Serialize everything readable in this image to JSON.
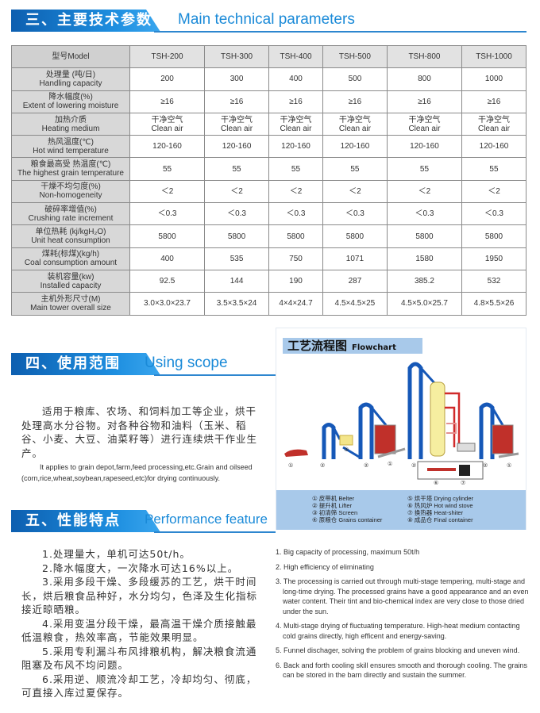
{
  "sections": {
    "params": {
      "cn": "三、主要技术参数",
      "en": "Main technical parameters"
    },
    "scope": {
      "cn": "四、使用范围",
      "en": "Using scope"
    },
    "perf": {
      "cn": "五、性能特点",
      "en": "Performance feature"
    }
  },
  "table": {
    "header": [
      "型号Model",
      "TSH-200",
      "TSH-300",
      "TSH-400",
      "TSH-500",
      "TSH-800",
      "TSH-1000"
    ],
    "rows": [
      {
        "cn": "处理量 (吨/日)",
        "en": "Handling capacity",
        "v": [
          "200",
          "300",
          "400",
          "500",
          "800",
          "1000"
        ]
      },
      {
        "cn": "降水幅度(%)",
        "en": "Extent of lowering moisture",
        "v": [
          "≥16",
          "≥16",
          "≥16",
          "≥16",
          "≥16",
          "≥16"
        ]
      },
      {
        "cn": "加热介质",
        "en": "Heating medium",
        "v": [
          "干净空气\nClean air",
          "干净空气\nClean air",
          "干净空气\nClean air",
          "干净空气\nClean air",
          "干净空气\nClean air",
          "干净空气\nClean air"
        ]
      },
      {
        "cn": "热风温度(℃)",
        "en": "Hot wind temperature",
        "v": [
          "120-160",
          "120-160",
          "120-160",
          "120-160",
          "120-160",
          "120-160"
        ]
      },
      {
        "cn": "粮食最高受 热温度(℃)",
        "en": "The highest grain temperature",
        "v": [
          "55",
          "55",
          "55",
          "55",
          "55",
          "55"
        ]
      },
      {
        "cn": "干燥不均匀度(%)",
        "en": "Non-homogeneity",
        "v": [
          "＜2",
          "＜2",
          "＜2",
          "＜2",
          "＜2",
          "＜2"
        ]
      },
      {
        "cn": "破碎率增值(%)",
        "en": "Crushing rate increment",
        "v": [
          "＜0.3",
          "＜0.3",
          "＜0.3",
          "＜0.3",
          "＜0.3",
          "＜0.3"
        ]
      },
      {
        "cn": "单位热耗 (kj/kgH₂O)",
        "en": "Unit heat consumption",
        "v": [
          "5800",
          "5800",
          "5800",
          "5800",
          "5800",
          "5800"
        ]
      },
      {
        "cn": "煤耗(标煤)(kg/h)",
        "en": "Coal consumption amount",
        "v": [
          "400",
          "535",
          "750",
          "1071",
          "1580",
          "1950"
        ]
      },
      {
        "cn": "装机容量(kw)",
        "en": "Installed capacity",
        "v": [
          "92.5",
          "144",
          "190",
          "287",
          "385.2",
          "532"
        ]
      },
      {
        "cn": "主机外形尺寸(M)",
        "en": "Main tower overall size",
        "v": [
          "3.0×3.0×23.7",
          "3.5×3.5×24",
          "4×4×24.7",
          "4.5×4.5×25",
          "4.5×5.0×25.7",
          "4.8×5.5×26"
        ]
      }
    ]
  },
  "scope": {
    "cn": "适用于粮库、农场、和饲料加工等企业，烘干处理高水分谷物。对各种谷物和油料（玉米、稻谷、小麦、大豆、油菜籽等）进行连续烘干作业生产。",
    "en": "It applies to grain depot,farm,feed processing,etc.Grain and oilseed (corn,rice,wheat,soybean,rapeseed,etc)for drying continuously."
  },
  "flowchart": {
    "title_cn": "工艺流程图",
    "title_en": "Flowchart",
    "labels": [
      "①",
      "②",
      "③",
      "②",
      "①",
      "②",
      "②",
      "①",
      "⑥",
      "⑦"
    ],
    "legend": [
      "① 皮带机  Belter",
      "② 提升机  Lifter",
      "③ 初清筛  Screen",
      "④ 原粮仓  Grains container",
      "⑤ 烘干塔  Drying cylinder",
      "⑥ 热风炉  Hot wind stove",
      "⑦ 换热器  Heat-shiter",
      "⑧ 成品仓  Final container"
    ]
  },
  "features_cn": [
    "1.处理量大，单机可达50t/h。",
    "2.降水幅度大，一次降水可达16%以上。",
    "3.采用多段干燥、多段缓苏的工艺，烘干时间长，烘后粮食品种好，水分均匀，色泽及生化指标接近晾晒粮。",
    "4.采用变温分段干燥，最高温干燥介质接触最低温粮食，热效率高，节能效果明显。",
    "5.采用专利漏斗布风排粮机构，解决粮食流通阻塞及布风不均问题。",
    "6.采用逆、顺流冷却工艺，冷却均匀、彻底，可直接入库过夏保存。"
  ],
  "features_en": [
    "1. Big capacity of processing, maximum 50t/h",
    "2. High efficiency of eliminating",
    "3. The processing is carried out through multi-stage tempering, multi-stage and long-time drying. The processed grains have a good appearance and an even water content. Their tint and bio-chemical index are very close to those dried under the sun.",
    "4. Multi-stage drying of fluctuating temperature. High-heat medium contacting cold grains directly, high efficent and energy-saving.",
    "5. Funnel dischager, solving the problem of grains blocking and uneven wind.",
    "6. Back and forth cooling skill ensures smooth and thorough cooling. The grains can be stored in the barn directly and sustain the summer."
  ],
  "colors": {
    "brand_blue": "#1a8ad8",
    "panel_blue": "#a8c9ea",
    "table_header": "#d8d8d8"
  }
}
